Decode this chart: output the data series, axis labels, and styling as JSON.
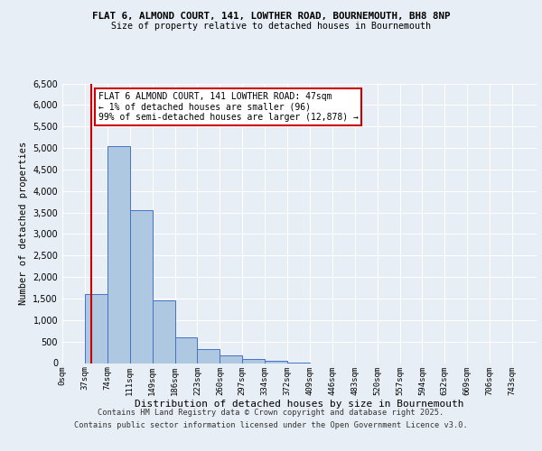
{
  "title_line1": "FLAT 6, ALMOND COURT, 141, LOWTHER ROAD, BOURNEMOUTH, BH8 8NP",
  "title_line2": "Size of property relative to detached houses in Bournemouth",
  "xlabel": "Distribution of detached houses by size in Bournemouth",
  "ylabel": "Number of detached properties",
  "bin_labels": [
    "0sqm",
    "37sqm",
    "74sqm",
    "111sqm",
    "149sqm",
    "186sqm",
    "223sqm",
    "260sqm",
    "297sqm",
    "334sqm",
    "372sqm",
    "409sqm",
    "446sqm",
    "483sqm",
    "520sqm",
    "557sqm",
    "594sqm",
    "632sqm",
    "669sqm",
    "706sqm",
    "743sqm"
  ],
  "bar_values": [
    0,
    1600,
    5050,
    3550,
    1450,
    600,
    330,
    175,
    100,
    50,
    20,
    0,
    0,
    0,
    0,
    0,
    0,
    0,
    0,
    0
  ],
  "bar_color": "#adc8e0",
  "bar_edge_color": "#4472c4",
  "property_line_x": 47,
  "property_line_color": "#cc0000",
  "annotation_line1": "FLAT 6 ALMOND COURT, 141 LOWTHER ROAD: 47sqm",
  "annotation_line2": "← 1% of detached houses are smaller (96)",
  "annotation_line3": "99% of semi-detached houses are larger (12,878) →",
  "annotation_box_color": "#ffffff",
  "annotation_box_edge": "#cc0000",
  "ylim": [
    0,
    6500
  ],
  "yticks": [
    0,
    500,
    1000,
    1500,
    2000,
    2500,
    3000,
    3500,
    4000,
    4500,
    5000,
    5500,
    6000,
    6500
  ],
  "footer_line1": "Contains HM Land Registry data © Crown copyright and database right 2025.",
  "footer_line2": "Contains public sector information licensed under the Open Government Licence v3.0.",
  "bg_color": "#e8eef5",
  "plot_bg_color": "#e8eef5",
  "bin_width": 37
}
